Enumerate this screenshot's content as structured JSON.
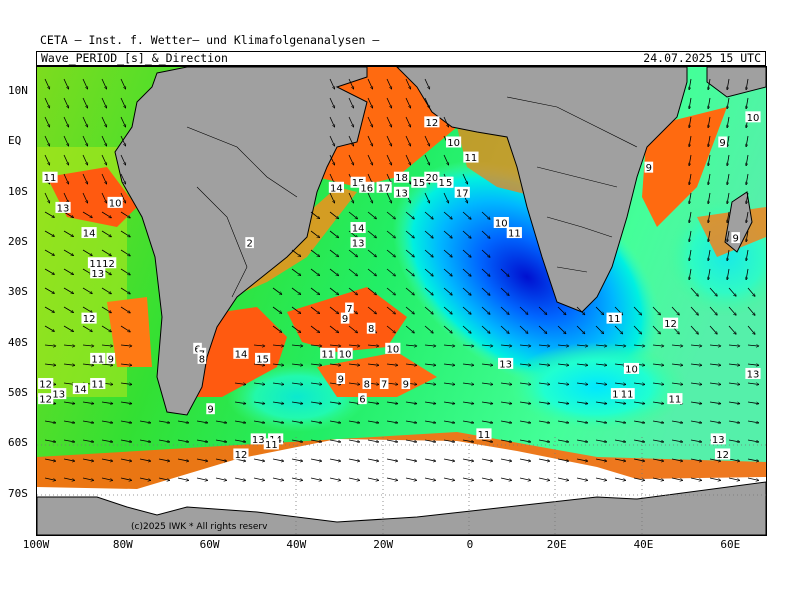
{
  "header": {
    "line1": "CETA – Inst. f. Wetter– und Klimafolgenanalysen –",
    "product": "Wave_PERIOD_[s]_&_Direction",
    "valid_time": "24.07.2025 15 UTC"
  },
  "copyright": "(c)2025 IWK * All rights reserv",
  "axes": {
    "x_ticks": [
      "100W",
      "80W",
      "60W",
      "40W",
      "20W",
      "0",
      "20E",
      "40E",
      "60E"
    ],
    "y_ticks": [
      "10N",
      "EQ",
      "10S",
      "20S",
      "30S",
      "40S",
      "50S",
      "60S",
      "70S"
    ]
  },
  "map_data": {
    "region": "South Atlantic and Southern Ocean",
    "lon_range": [
      -100,
      68
    ],
    "lat_range": [
      15,
      -78
    ],
    "field": "wave period [s]",
    "colors": {
      "land": "#a0a0a0",
      "sea_ice": "#ffffff",
      "period_low": "#ff4400",
      "period_mid": "#33ee33",
      "period_high": "#0000e0",
      "coastline": "#000000"
    },
    "period_labels": [
      {
        "lon": -97,
        "lat": -7,
        "text": "11"
      },
      {
        "lon": -94,
        "lat": -13,
        "text": "13"
      },
      {
        "lon": -82,
        "lat": -12,
        "text": "10"
      },
      {
        "lon": -88,
        "lat": -18,
        "text": "14"
      },
      {
        "lon": -85,
        "lat": -24,
        "text": "1112"
      },
      {
        "lon": -86,
        "lat": -26,
        "text": "13"
      },
      {
        "lon": -88,
        "lat": -35,
        "text": "12"
      },
      {
        "lon": -86,
        "lat": -43,
        "text": "11"
      },
      {
        "lon": -83,
        "lat": -43,
        "text": "9"
      },
      {
        "lon": -98,
        "lat": -48,
        "text": "12"
      },
      {
        "lon": -98,
        "lat": -51,
        "text": "12"
      },
      {
        "lon": -95,
        "lat": -50,
        "text": "13"
      },
      {
        "lon": -90,
        "lat": -49,
        "text": "14"
      },
      {
        "lon": -86,
        "lat": -48,
        "text": "11"
      },
      {
        "lon": -63,
        "lat": -41,
        "text": "6"
      },
      {
        "lon": -62,
        "lat": -42,
        "text": "7"
      },
      {
        "lon": -62,
        "lat": -43,
        "text": "8"
      },
      {
        "lon": -60,
        "lat": -53,
        "text": "9"
      },
      {
        "lon": -53,
        "lat": -42,
        "text": "14"
      },
      {
        "lon": -48,
        "lat": -43,
        "text": "15"
      },
      {
        "lon": -51,
        "lat": -20,
        "text": "2"
      },
      {
        "lon": -31,
        "lat": -9,
        "text": "14"
      },
      {
        "lon": -26,
        "lat": -8,
        "text": "15"
      },
      {
        "lon": -24,
        "lat": -9,
        "text": "16"
      },
      {
        "lon": -20,
        "lat": -9,
        "text": "17"
      },
      {
        "lon": -16,
        "lat": -7,
        "text": "18"
      },
      {
        "lon": -16,
        "lat": -10,
        "text": "13"
      },
      {
        "lon": -12,
        "lat": -8,
        "text": "15"
      },
      {
        "lon": -9,
        "lat": -7,
        "text": "20"
      },
      {
        "lon": -6,
        "lat": -8,
        "text": "16"
      },
      {
        "lon": -5,
        "lat": -8,
        "text": "5"
      },
      {
        "lon": -2,
        "lat": -10,
        "text": "17"
      },
      {
        "lon": -9,
        "lat": 4,
        "text": "12"
      },
      {
        "lon": -4,
        "lat": 0,
        "text": "10"
      },
      {
        "lon": 0,
        "lat": -3,
        "text": "11"
      },
      {
        "lon": 7,
        "lat": -16,
        "text": "10"
      },
      {
        "lon": 10,
        "lat": -18,
        "text": "11"
      },
      {
        "lon": -26,
        "lat": -17,
        "text": "14"
      },
      {
        "lon": -26,
        "lat": -20,
        "text": "13"
      },
      {
        "lon": -28,
        "lat": -33,
        "text": "7"
      },
      {
        "lon": -29,
        "lat": -35,
        "text": "9"
      },
      {
        "lon": -23,
        "lat": -37,
        "text": "8"
      },
      {
        "lon": -33,
        "lat": -42,
        "text": "11"
      },
      {
        "lon": -29,
        "lat": -42,
        "text": "10"
      },
      {
        "lon": -18,
        "lat": -41,
        "text": "10"
      },
      {
        "lon": -30,
        "lat": -47,
        "text": "9"
      },
      {
        "lon": -24,
        "lat": -48,
        "text": "8"
      },
      {
        "lon": -20,
        "lat": -48,
        "text": "7"
      },
      {
        "lon": -25,
        "lat": -51,
        "text": "6"
      },
      {
        "lon": -15,
        "lat": -48,
        "text": "9"
      },
      {
        "lon": 8,
        "lat": -44,
        "text": "13"
      },
      {
        "lon": -45,
        "lat": -59,
        "text": "14"
      },
      {
        "lon": -46,
        "lat": -60,
        "text": "11"
      },
      {
        "lon": -49,
        "lat": -59,
        "text": "13"
      },
      {
        "lon": -53,
        "lat": -62,
        "text": "12"
      },
      {
        "lon": 3,
        "lat": -58,
        "text": "11"
      },
      {
        "lon": 33,
        "lat": -35,
        "text": "11"
      },
      {
        "lon": 46,
        "lat": -36,
        "text": "12"
      },
      {
        "lon": 37,
        "lat": -45,
        "text": "10"
      },
      {
        "lon": 34,
        "lat": -50,
        "text": "17"
      },
      {
        "lon": 36,
        "lat": -50,
        "text": "11"
      },
      {
        "lon": 47,
        "lat": -51,
        "text": "11"
      },
      {
        "lon": 65,
        "lat": -46,
        "text": "13"
      },
      {
        "lon": 57,
        "lat": -59,
        "text": "13"
      },
      {
        "lon": 58,
        "lat": -62,
        "text": "12"
      },
      {
        "lon": 41,
        "lat": -5,
        "text": "9"
      },
      {
        "lon": 58,
        "lat": 0,
        "text": "9"
      },
      {
        "lon": 65,
        "lat": 5,
        "text": "10"
      },
      {
        "lon": 61,
        "lat": -19,
        "text": "9"
      }
    ]
  }
}
